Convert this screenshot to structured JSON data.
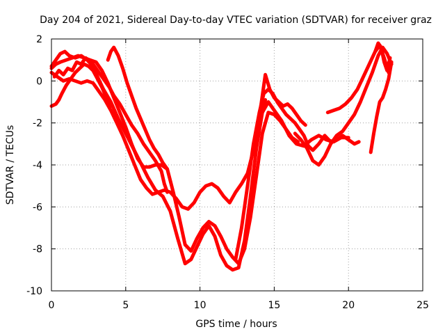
{
  "chart_data": {
    "type": "scatter",
    "title": "Day 204 of 2021, Sidereal Day-to-day VTEC variation (SDTVAR) for receiver graz",
    "xlabel": "GPS time / hours",
    "ylabel": "SDTVAR / TECUs",
    "xlim": [
      0,
      25
    ],
    "ylim": [
      -10,
      2
    ],
    "xticks": [
      0,
      5,
      10,
      15,
      20,
      25
    ],
    "yticks": [
      -10,
      -8,
      -6,
      -4,
      -2,
      0,
      2
    ],
    "grid": true,
    "marker": "plus",
    "color": "#ff0000",
    "series": [
      {
        "x": [
          0.0,
          0.3,
          0.6,
          0.9,
          1.2,
          1.6,
          2.0,
          2.4,
          2.8,
          3.1,
          3.5,
          4.0,
          4.5,
          5.0,
          5.5,
          6.0,
          6.5,
          7.0,
          7.5,
          8.0,
          8.5,
          9.0,
          9.4,
          9.8,
          10.2,
          10.6,
          11.0,
          11.4,
          11.8,
          12.2,
          12.6,
          13.0,
          13.4,
          13.8,
          14.2,
          14.6,
          15.0,
          15.5,
          16.0,
          16.5,
          17.0,
          17.5,
          18.0,
          18.5,
          19.0,
          19.5,
          20.0
        ],
        "y": [
          0.7,
          1.0,
          1.3,
          1.4,
          1.2,
          1.1,
          1.2,
          1.0,
          0.7,
          0.2,
          -0.4,
          -1.0,
          -1.8,
          -2.5,
          -3.2,
          -3.9,
          -4.6,
          -5.2,
          -5.5,
          -6.2,
          -7.5,
          -8.7,
          -8.5,
          -7.9,
          -7.3,
          -6.9,
          -7.4,
          -8.3,
          -8.8,
          -9.0,
          -8.9,
          -7.6,
          -5.5,
          -3.2,
          -1.5,
          -1.0,
          -1.4,
          -1.9,
          -2.6,
          -3.0,
          -3.1,
          -2.8,
          -2.6,
          -2.8,
          -2.9,
          -2.7,
          -2.7
        ]
      },
      {
        "x": [
          0.0,
          0.3,
          0.6,
          1.0,
          1.4,
          1.8,
          2.2,
          2.6,
          3.0,
          3.4,
          3.8,
          4.2,
          4.6,
          5.0,
          5.4,
          5.8,
          6.2,
          6.6,
          7.0,
          7.4,
          7.8,
          8.2,
          8.6,
          9.0,
          9.4,
          9.8,
          10.2,
          10.6,
          11.0,
          11.4,
          11.8,
          12.2,
          12.6,
          13.0,
          13.4,
          13.8,
          14.2,
          14.6,
          15.0,
          15.4,
          15.8,
          16.2,
          16.6
        ],
        "y": [
          0.6,
          0.8,
          0.9,
          1.0,
          1.1,
          1.2,
          1.1,
          1.0,
          0.9,
          0.5,
          -0.1,
          -0.8,
          -1.5,
          -2.2,
          -3.0,
          -3.7,
          -4.1,
          -4.1,
          -4.0,
          -4.0,
          -4.2,
          -5.3,
          -6.5,
          -7.8,
          -8.1,
          -7.5,
          -7.0,
          -6.7,
          -6.9,
          -7.4,
          -8.0,
          -8.4,
          -8.7,
          -8.0,
          -6.5,
          -4.5,
          -2.5,
          -1.5,
          -1.6,
          -1.9,
          -2.3,
          -2.7,
          -2.9
        ]
      },
      {
        "x": [
          0.0,
          0.4,
          0.8,
          1.2,
          1.6,
          2.0,
          2.4,
          2.8,
          3.2,
          3.6,
          4.0,
          4.4,
          4.8,
          5.2,
          5.6,
          6.0,
          6.4,
          6.8,
          7.2,
          7.6,
          8.0,
          8.4,
          8.8,
          9.2,
          9.6,
          10.0,
          10.4,
          10.8,
          11.2,
          11.6,
          12.0,
          12.4,
          12.8,
          13.2,
          13.6,
          14.0,
          14.4
        ],
        "y": [
          0.4,
          0.2,
          0.0,
          0.1,
          0.0,
          -0.1,
          0.0,
          -0.1,
          -0.5,
          -0.9,
          -1.4,
          -2.0,
          -2.6,
          -3.3,
          -4.0,
          -4.7,
          -5.1,
          -5.4,
          -5.3,
          -5.2,
          -5.3,
          -5.6,
          -6.0,
          -6.1,
          -5.8,
          -5.3,
          -5.0,
          -4.9,
          -5.1,
          -5.5,
          -5.8,
          -5.3,
          -4.9,
          -4.4,
          -3.3,
          -2.0,
          -0.9
        ]
      },
      {
        "x": [
          0.2,
          0.5,
          0.8,
          1.1,
          1.4,
          1.7,
          2.0,
          2.3,
          2.7,
          3.1,
          3.5,
          3.9,
          4.2,
          4.6,
          5.0,
          5.4,
          5.8,
          6.2,
          6.6,
          7.0,
          7.4,
          7.6,
          7.8
        ],
        "y": [
          0.2,
          0.5,
          0.3,
          0.6,
          0.5,
          0.9,
          0.8,
          1.1,
          0.9,
          0.5,
          0.1,
          -0.3,
          -0.7,
          -1.1,
          -1.6,
          -2.1,
          -2.5,
          -3.0,
          -3.4,
          -3.8,
          -4.3,
          -4.9,
          -5.3
        ]
      },
      {
        "x": [
          0.0,
          0.3,
          0.5,
          0.7,
          1.0,
          1.3,
          1.6,
          1.9,
          2.2,
          2.5,
          2.8,
          3.1,
          3.4,
          3.7,
          4.0
        ],
        "y": [
          -1.2,
          -1.1,
          -0.9,
          -0.6,
          -0.2,
          0.1,
          0.4,
          0.6,
          0.8,
          0.7,
          0.5,
          0.1,
          -0.3,
          -0.8,
          -1.2
        ]
      },
      {
        "x": [
          3.8,
          4.0,
          4.2,
          4.5,
          4.8,
          5.1,
          5.4,
          5.7,
          6.0,
          6.3,
          6.6,
          6.9,
          7.2,
          7.5,
          7.8
        ],
        "y": [
          1.0,
          1.4,
          1.6,
          1.2,
          0.6,
          -0.1,
          -0.7,
          -1.3,
          -1.8,
          -2.3,
          -2.8,
          -3.2,
          -3.5,
          -3.9,
          -4.2
        ]
      },
      {
        "x": [
          12.4,
          12.8,
          13.2,
          13.6,
          14.0,
          14.3,
          14.6,
          14.9,
          15.2,
          15.5,
          15.8,
          16.1,
          16.4,
          16.7,
          17.0,
          17.3,
          17.6,
          18.0,
          18.4,
          18.8,
          19.2,
          19.6,
          20.0,
          20.4,
          20.7
        ],
        "y": [
          -8.5,
          -7.0,
          -5.0,
          -3.0,
          -1.5,
          -0.6,
          -0.4,
          -0.6,
          -1.0,
          -1.3,
          -1.6,
          -1.8,
          -2.0,
          -2.3,
          -2.6,
          -3.1,
          -3.3,
          -3.0,
          -2.6,
          -2.9,
          -2.8,
          -2.6,
          -2.8,
          -3.0,
          -2.9
        ]
      },
      {
        "x": [
          13.8,
          14.1,
          14.4,
          14.7,
          15.0,
          15.3,
          15.6,
          15.9,
          16.2,
          16.5,
          16.8,
          17.1
        ],
        "y": [
          -3.0,
          -1.2,
          0.3,
          -0.4,
          -0.8,
          -1.0,
          -1.2,
          -1.1,
          -1.3,
          -1.6,
          -1.9,
          -2.1
        ]
      },
      {
        "x": [
          16.4,
          16.8,
          17.2,
          17.6,
          18.0,
          18.4,
          18.8,
          19.2,
          19.6,
          20.0,
          20.4,
          20.8,
          21.2,
          21.6,
          22.0,
          22.3,
          22.6,
          22.9
        ],
        "y": [
          -2.5,
          -2.8,
          -3.2,
          -3.8,
          -4.0,
          -3.6,
          -3.0,
          -2.6,
          -2.4,
          -2.0,
          -1.6,
          -1.0,
          -0.3,
          0.4,
          1.2,
          1.6,
          1.3,
          0.8
        ]
      },
      {
        "x": [
          18.6,
          19.0,
          19.4,
          19.8,
          20.2,
          20.6,
          21.0,
          21.4,
          21.8,
          22.1,
          22.4,
          22.7
        ],
        "y": [
          -1.5,
          -1.4,
          -1.3,
          -1.1,
          -0.8,
          -0.4,
          0.2,
          0.8,
          1.4,
          1.7,
          1.1,
          0.4
        ]
      },
      {
        "x": [
          21.5,
          21.7,
          21.9,
          22.1,
          22.3,
          22.5,
          22.7,
          22.9
        ],
        "y": [
          -3.4,
          -2.5,
          -1.7,
          -1.0,
          -0.8,
          -0.4,
          0.1,
          0.9
        ]
      },
      {
        "x": [
          21.8,
          22.0,
          22.2,
          22.4,
          22.6,
          22.8
        ],
        "y": [
          1.4,
          1.8,
          1.6,
          0.9,
          0.5,
          1.1
        ]
      }
    ]
  }
}
